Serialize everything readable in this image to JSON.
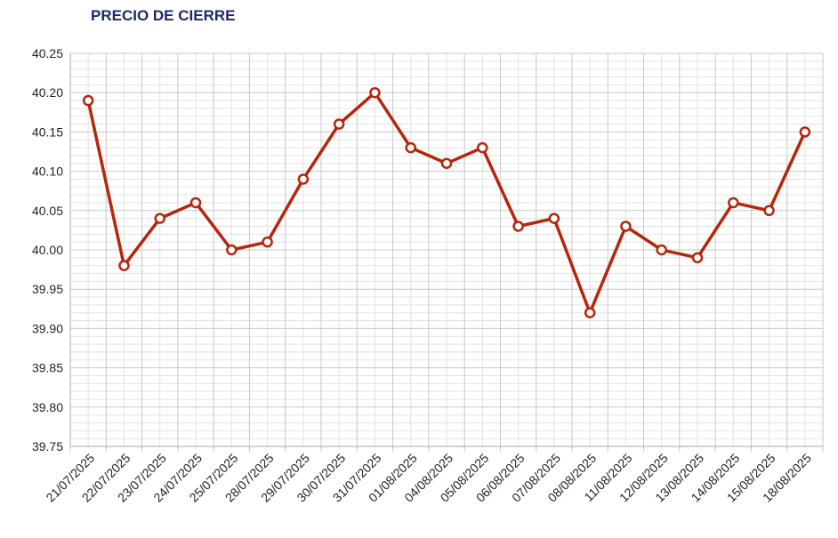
{
  "chart_data": {
    "type": "line",
    "title": "PRECIO DE CIERRE",
    "categories": [
      "21/07/2025",
      "22/07/2025",
      "23/07/2025",
      "24/07/2025",
      "25/07/2025",
      "28/07/2025",
      "29/07/2025",
      "30/07/2025",
      "31/07/2025",
      "01/08/2025",
      "04/08/2025",
      "05/08/2025",
      "06/08/2025",
      "07/08/2025",
      "08/08/2025",
      "11/08/2025",
      "12/08/2025",
      "13/08/2025",
      "14/08/2025",
      "15/08/2025",
      "18/08/2025"
    ],
    "values": [
      40.19,
      39.98,
      40.04,
      40.06,
      40.0,
      40.01,
      40.09,
      40.16,
      40.2,
      40.13,
      40.11,
      40.13,
      40.03,
      40.04,
      39.92,
      40.03,
      40.0,
      39.99,
      40.06,
      40.05,
      40.15
    ],
    "color": "#b5260c",
    "ylim": [
      39.75,
      40.25
    ],
    "yticks": [
      39.75,
      {
        "value": 39.8,
        "label": "39.80"
      },
      39.85,
      {
        "value": 39.9,
        "label": "39.90"
      },
      39.95,
      {
        "value": 40.0,
        "label": "40.00"
      },
      40.05,
      {
        "value": 40.1,
        "label": "40.10"
      },
      40.15,
      {
        "value": 40.2,
        "label": "40.20"
      },
      40.25
    ],
    "grid": true
  }
}
